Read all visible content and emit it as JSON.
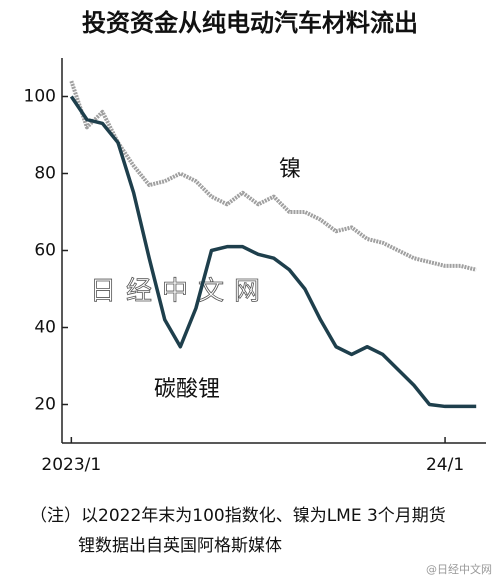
{
  "chart_data": {
    "type": "line",
    "title": "投资资金从纯电动汽车材料流出",
    "x": [
      0,
      0.5,
      1,
      1.5,
      2,
      2.5,
      3,
      3.5,
      4,
      4.5,
      5,
      5.5,
      6,
      6.5,
      7,
      7.5,
      8,
      8.5,
      9,
      9.5,
      10,
      10.5,
      11,
      11.5,
      12,
      12.5,
      13
    ],
    "series": [
      {
        "name": "镍",
        "color": "#a0a0a0",
        "values": [
          104,
          92,
          96,
          88,
          82,
          77,
          78,
          80,
          78,
          74,
          72,
          75,
          72,
          74,
          70,
          70,
          68,
          65,
          66,
          63,
          62,
          60,
          58,
          57,
          56,
          56,
          55
        ]
      },
      {
        "name": "碳酸锂",
        "color": "#1e3f4c",
        "values": [
          100,
          94,
          93,
          88,
          75,
          58,
          42,
          35,
          45,
          60,
          61,
          61,
          59,
          58,
          55,
          50,
          42,
          35,
          33,
          35,
          33,
          29,
          25,
          20,
          19.5,
          19.5,
          19.5
        ]
      }
    ],
    "xlim": [
      -0.3,
      13.7
    ],
    "xticks": [
      {
        "value": 0,
        "label": "2023/1"
      },
      {
        "value": 12,
        "label": "24/1"
      }
    ],
    "ylim": [
      10,
      110
    ],
    "yticks": [
      20,
      40,
      60,
      80,
      100
    ],
    "watermark": "日经中文网",
    "notes": [
      "（注）以2022年末为100指数化、镍为LME 3个月期货",
      "锂数据出自英国阿格斯媒体"
    ],
    "source_mark": "@日经中文网"
  }
}
